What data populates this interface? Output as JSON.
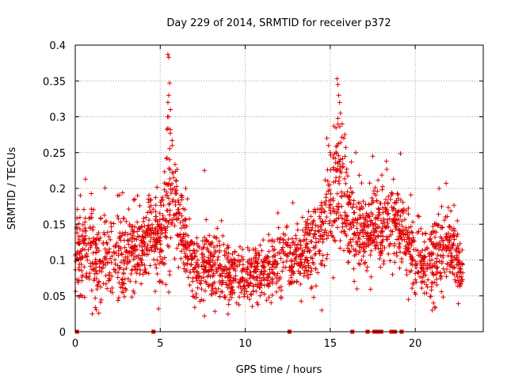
{
  "chart_data": {
    "type": "scatter",
    "title": "Day 229 of 2014, SRMTID for receiver p372",
    "xlabel": "GPS time / hours",
    "ylabel": "SRMTID / TECUs",
    "xlim": [
      0,
      24
    ],
    "ylim": [
      0,
      0.4
    ],
    "x_ticks": [
      0,
      5,
      10,
      15,
      20
    ],
    "x_tick_labels": [
      "0",
      "5",
      "10",
      "15",
      "20"
    ],
    "y_ticks": [
      0,
      0.05,
      0.1,
      0.15,
      0.2,
      0.25,
      0.3,
      0.35,
      0.4
    ],
    "y_tick_labels": [
      "0",
      "0.05",
      "0.1",
      "0.15",
      "0.2",
      "0.25",
      "0.3",
      "0.35",
      "0.4"
    ],
    "grid": true,
    "marker": "+",
    "color": "#e00000",
    "zero_markers_x": [
      0.1,
      4.6,
      12.6,
      16.3,
      17.2,
      17.6,
      17.8,
      18.0,
      18.6,
      18.8,
      19.2
    ],
    "envelope": [
      {
        "t": 0.0,
        "mean": 0.105,
        "spread": 0.045
      },
      {
        "t": 0.5,
        "mean": 0.115,
        "spread": 0.055
      },
      {
        "t": 1.0,
        "mean": 0.11,
        "spread": 0.06
      },
      {
        "t": 2.0,
        "mean": 0.1,
        "spread": 0.05
      },
      {
        "t": 3.0,
        "mean": 0.11,
        "spread": 0.055
      },
      {
        "t": 4.0,
        "mean": 0.12,
        "spread": 0.05
      },
      {
        "t": 4.5,
        "mean": 0.14,
        "spread": 0.04
      },
      {
        "t": 5.0,
        "mean": 0.12,
        "spread": 0.06
      },
      {
        "t": 5.5,
        "mean": 0.2,
        "spread": 0.1
      },
      {
        "t": 6.0,
        "mean": 0.17,
        "spread": 0.06
      },
      {
        "t": 6.5,
        "mean": 0.12,
        "spread": 0.05
      },
      {
        "t": 7.0,
        "mean": 0.09,
        "spread": 0.04
      },
      {
        "t": 8.0,
        "mean": 0.095,
        "spread": 0.04
      },
      {
        "t": 9.0,
        "mean": 0.085,
        "spread": 0.035
      },
      {
        "t": 10.0,
        "mean": 0.08,
        "spread": 0.035
      },
      {
        "t": 11.0,
        "mean": 0.085,
        "spread": 0.035
      },
      {
        "t": 12.0,
        "mean": 0.1,
        "spread": 0.045
      },
      {
        "t": 13.0,
        "mean": 0.1,
        "spread": 0.04
      },
      {
        "t": 14.0,
        "mean": 0.12,
        "spread": 0.05
      },
      {
        "t": 14.5,
        "mean": 0.15,
        "spread": 0.06
      },
      {
        "t": 15.0,
        "mean": 0.17,
        "spread": 0.07
      },
      {
        "t": 15.5,
        "mean": 0.22,
        "spread": 0.09
      },
      {
        "t": 16.0,
        "mean": 0.16,
        "spread": 0.06
      },
      {
        "t": 17.0,
        "mean": 0.14,
        "spread": 0.05
      },
      {
        "t": 18.0,
        "mean": 0.15,
        "spread": 0.05
      },
      {
        "t": 19.0,
        "mean": 0.15,
        "spread": 0.05
      },
      {
        "t": 20.0,
        "mean": 0.1,
        "spread": 0.05
      },
      {
        "t": 21.0,
        "mean": 0.1,
        "spread": 0.05
      },
      {
        "t": 22.0,
        "mean": 0.12,
        "spread": 0.05
      },
      {
        "t": 22.8,
        "mean": 0.09,
        "spread": 0.035
      }
    ],
    "peaks": [
      {
        "x": 5.45,
        "y": 0.387
      },
      {
        "x": 5.5,
        "y": 0.383
      },
      {
        "x": 5.55,
        "y": 0.347
      },
      {
        "x": 5.5,
        "y": 0.33
      },
      {
        "x": 5.45,
        "y": 0.32
      },
      {
        "x": 5.6,
        "y": 0.31
      },
      {
        "x": 5.5,
        "y": 0.3
      },
      {
        "x": 5.6,
        "y": 0.282
      },
      {
        "x": 5.7,
        "y": 0.26
      },
      {
        "x": 5.55,
        "y": 0.24
      },
      {
        "x": 15.4,
        "y": 0.353
      },
      {
        "x": 15.45,
        "y": 0.345
      },
      {
        "x": 15.5,
        "y": 0.33
      },
      {
        "x": 15.55,
        "y": 0.32
      },
      {
        "x": 15.6,
        "y": 0.305
      },
      {
        "x": 15.7,
        "y": 0.29
      },
      {
        "x": 15.8,
        "y": 0.27
      },
      {
        "x": 14.8,
        "y": 0.27
      },
      {
        "x": 14.9,
        "y": 0.26
      },
      {
        "x": 15.0,
        "y": 0.25
      },
      {
        "x": 16.5,
        "y": 0.25
      },
      {
        "x": 17.5,
        "y": 0.245
      },
      {
        "x": 18.3,
        "y": 0.238
      },
      {
        "x": 7.6,
        "y": 0.225
      },
      {
        "x": 0.6,
        "y": 0.213
      },
      {
        "x": 6.5,
        "y": 0.2
      },
      {
        "x": 21.4,
        "y": 0.2
      },
      {
        "x": 4.3,
        "y": 0.185
      },
      {
        "x": 12.8,
        "y": 0.18
      },
      {
        "x": 0.3,
        "y": 0.19
      },
      {
        "x": 2.5,
        "y": 0.19
      },
      {
        "x": 3.5,
        "y": 0.185
      },
      {
        "x": 8.6,
        "y": 0.155
      },
      {
        "x": 7.6,
        "y": 0.022
      },
      {
        "x": 4.9,
        "y": 0.032
      },
      {
        "x": 21.0,
        "y": 0.03
      },
      {
        "x": 19.6,
        "y": 0.045
      },
      {
        "x": 9.5,
        "y": 0.04
      },
      {
        "x": 14.5,
        "y": 0.03
      }
    ]
  }
}
